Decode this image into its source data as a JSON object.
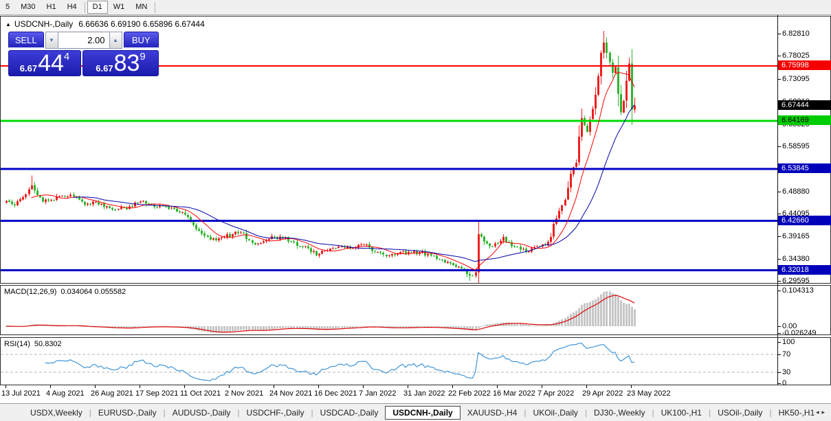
{
  "toolbar": {
    "timeframes": [
      {
        "label": "5",
        "active": false
      },
      {
        "label": "M30",
        "active": false
      },
      {
        "label": "H1",
        "active": false
      },
      {
        "label": "H4",
        "active": false
      },
      {
        "label": "D1",
        "active": true
      },
      {
        "label": "W1",
        "active": false
      },
      {
        "label": "MN",
        "active": false
      }
    ]
  },
  "chart": {
    "marker": "▲",
    "symbol_title": "USDCNH-,Daily",
    "ohlc_text": "6.66636 6.69190 6.65896 6.67444"
  },
  "trade_panel": {
    "sell_label": "SELL",
    "buy_label": "BUY",
    "volume": "2.00",
    "down_arrow": "▼",
    "up_arrow": "▲",
    "sell_price": {
      "base": "6.67",
      "main": "44",
      "sup": "4"
    },
    "buy_price": {
      "base": "6.67",
      "main": "83",
      "sup": "9"
    }
  },
  "price_axis": {
    "ticks": [
      "6.82810",
      "6.78025",
      "6.73095",
      "6.68210",
      "6.63325",
      "6.58595",
      "6.48880",
      "6.44095",
      "6.39165",
      "6.34380",
      "6.29595"
    ],
    "badges": [
      {
        "text": "6.75998",
        "bg": "#f40000",
        "fg": "#ffffff"
      },
      {
        "text": "6.67444",
        "bg": "#000000",
        "fg": "#ffffff"
      },
      {
        "text": "6.64169",
        "bg": "#00cc00",
        "fg": "#000000"
      },
      {
        "text": "6.53845",
        "bg": "#0000bb",
        "fg": "#ffffff"
      },
      {
        "text": "6.42660",
        "bg": "#0000bb",
        "fg": "#ffffff"
      },
      {
        "text": "6.32018",
        "bg": "#0000bb",
        "fg": "#ffffff"
      }
    ]
  },
  "indicators": {
    "macd": {
      "label": "MACD(12,26,9)",
      "values_text": "0.034064 0.055582",
      "axis": [
        "0.104313",
        "0.00",
        "-0.026249"
      ]
    },
    "rsi": {
      "label": "RSI(14)",
      "value_text": "50.8302",
      "axis": [
        "100",
        "70",
        "30",
        "0"
      ],
      "level_high": 70,
      "level_low": 30
    }
  },
  "tabs": {
    "items": [
      {
        "label": "USDX,Weekly",
        "active": false
      },
      {
        "label": "EURUSD-,Daily",
        "active": false
      },
      {
        "label": "AUDUSD-,Daily",
        "active": false
      },
      {
        "label": "USDCHF-,Daily",
        "active": false
      },
      {
        "label": "USDCAD-,Daily",
        "active": false
      },
      {
        "label": "USDCNH-,Daily",
        "active": true
      },
      {
        "label": "XAUUSD-,H4",
        "active": false
      },
      {
        "label": "UKOil-,Daily",
        "active": false
      },
      {
        "label": "DJ30-,Weekly",
        "active": false
      },
      {
        "label": "UK100-,H1",
        "active": false
      },
      {
        "label": "USOil-,Daily",
        "active": false
      },
      {
        "label": "HK50-,H1",
        "active": false
      }
    ],
    "scroll_left": "◂",
    "scroll_right": "▸"
  },
  "chart_data": {
    "type": "candlestick",
    "symbol": "USDCNH-",
    "timeframe": "Daily",
    "bars": 226,
    "bull_color_meaning": "red = up candle, green = down candle",
    "x_labels": [
      "13 Jul 2021",
      "4 Aug 2021",
      "26 Aug 2021",
      "17 Sep 2021",
      "11 Oct 2021",
      "2 Nov 2021",
      "24 Nov 2021",
      "16 Dec 2021",
      "7 Jan 2022",
      "31 Jan 2022",
      "22 Feb 2022",
      "16 Mar 2022",
      "7 Apr 2022",
      "29 Apr 2022",
      "23 May 2022"
    ],
    "bars_per_label": 16,
    "price_range_top": 6.8665,
    "price_range_bottom": 6.296,
    "last_ohlc": {
      "o": 6.66636,
      "h": 6.6919,
      "l": 6.65896,
      "c": 6.67444
    },
    "levels": {
      "red": 6.75998,
      "green": 6.64169,
      "blue": [
        6.53845,
        6.4266,
        6.32018
      ],
      "current": 6.67444
    },
    "price_anchors": [
      [
        0,
        6.47
      ],
      [
        3,
        6.46
      ],
      [
        6,
        6.478
      ],
      [
        9,
        6.503
      ],
      [
        10,
        6.492
      ],
      [
        13,
        6.468
      ],
      [
        16,
        6.472
      ],
      [
        20,
        6.48
      ],
      [
        23,
        6.483
      ],
      [
        27,
        6.468
      ],
      [
        30,
        6.462
      ],
      [
        32,
        6.468
      ],
      [
        36,
        6.458
      ],
      [
        40,
        6.452
      ],
      [
        44,
        6.458
      ],
      [
        48,
        6.468
      ],
      [
        52,
        6.462
      ],
      [
        56,
        6.458
      ],
      [
        60,
        6.452
      ],
      [
        64,
        6.44
      ],
      [
        66,
        6.424
      ],
      [
        69,
        6.405
      ],
      [
        72,
        6.392
      ],
      [
        75,
        6.385
      ],
      [
        78,
        6.392
      ],
      [
        81,
        6.398
      ],
      [
        84,
        6.402
      ],
      [
        87,
        6.385
      ],
      [
        90,
        6.378
      ],
      [
        93,
        6.385
      ],
      [
        96,
        6.392
      ],
      [
        99,
        6.39
      ],
      [
        102,
        6.382
      ],
      [
        105,
        6.372
      ],
      [
        108,
        6.368
      ],
      [
        111,
        6.352
      ],
      [
        114,
        6.362
      ],
      [
        117,
        6.368
      ],
      [
        120,
        6.372
      ],
      [
        124,
        6.368
      ],
      [
        128,
        6.376
      ],
      [
        131,
        6.362
      ],
      [
        134,
        6.358
      ],
      [
        137,
        6.352
      ],
      [
        140,
        6.356
      ],
      [
        144,
        6.36
      ],
      [
        148,
        6.358
      ],
      [
        152,
        6.352
      ],
      [
        156,
        6.342
      ],
      [
        159,
        6.335
      ],
      [
        162,
        6.328
      ],
      [
        165,
        6.312
      ],
      [
        167,
        6.308
      ],
      [
        168,
        6.316
      ],
      [
        169,
        6.398
      ],
      [
        171,
        6.382
      ],
      [
        174,
        6.372
      ],
      [
        176,
        6.378
      ],
      [
        178,
        6.392
      ],
      [
        181,
        6.372
      ],
      [
        184,
        6.365
      ],
      [
        186,
        6.36
      ],
      [
        189,
        6.37
      ],
      [
        192,
        6.376
      ],
      [
        194,
        6.382
      ],
      [
        195,
        6.392
      ],
      [
        196,
        6.42
      ],
      [
        197,
        6.432
      ],
      [
        198,
        6.448
      ],
      [
        199,
        6.46
      ],
      [
        200,
        6.472
      ],
      [
        201,
        6.498
      ],
      [
        202,
        6.528
      ],
      [
        203,
        6.542
      ],
      [
        204,
        6.552
      ],
      [
        205,
        6.608
      ],
      [
        206,
        6.648
      ],
      [
        207,
        6.632
      ],
      [
        208,
        6.618
      ],
      [
        209,
        6.645
      ],
      [
        210,
        6.668
      ],
      [
        211,
        6.698
      ],
      [
        212,
        6.738
      ],
      [
        213,
        6.788
      ],
      [
        214,
        6.81
      ],
      [
        215,
        6.788
      ],
      [
        216,
        6.768
      ],
      [
        217,
        6.745
      ],
      [
        218,
        6.758
      ],
      [
        219,
        6.7
      ],
      [
        220,
        6.66
      ],
      [
        221,
        6.685
      ],
      [
        222,
        6.728
      ],
      [
        223,
        6.765
      ],
      [
        224,
        6.666
      ],
      [
        225,
        6.67444
      ]
    ],
    "wick_marks": [
      {
        "bar": 9,
        "high": 6.5245
      },
      {
        "bar": 166,
        "low": 6.2975
      },
      {
        "bar": 214,
        "high": 6.8355
      }
    ],
    "moving_averages": [
      {
        "period": 10,
        "color": "#ff0000"
      },
      {
        "period": 25,
        "color": "#0000a8"
      }
    ],
    "macd": {
      "fast": 12,
      "slow": 26,
      "signal": 9,
      "last_macd": 0.034064,
      "last_signal": 0.055582
    },
    "rsi": {
      "period": 14,
      "last": 50.8302
    },
    "colors": {
      "bull": "#ee1f1f",
      "bear": "#2fb42f",
      "ma_fast": "#ff0000",
      "ma_slow": "#0000a8",
      "level_red": "#ff0000",
      "level_green": "#00db00",
      "level_blue": "#0000c8",
      "hist": "#c6c6c6",
      "signal": "#dd0000",
      "rsi_line": "#3e95d9",
      "rsi_dash": "#b5b5b5"
    }
  }
}
